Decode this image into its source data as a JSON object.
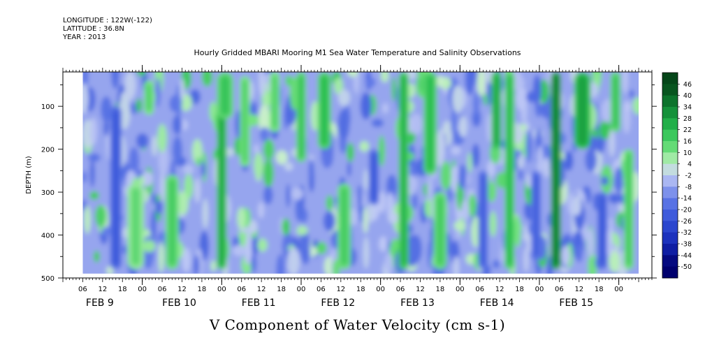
{
  "header": {
    "longitude": "LONGITUDE : 122W(-122)",
    "latitude": "LATITUDE : 36.8N",
    "year": "YEAR : 2013"
  },
  "title": "Hourly Gridded MBARI Mooring M1 Sea Water Temperature and Salinity Observations",
  "chart_data": {
    "type": "heatmap",
    "title": "Hourly Gridded MBARI Mooring M1 Sea Water Temperature and Salinity Observations",
    "variable_label": "V Component of Water Velocity (cm s-1)",
    "ylabel": "DEPTH (m)",
    "ylim": [
      500,
      20
    ],
    "y_inverted": true,
    "yticks": [
      {
        "value": 100,
        "label": "100"
      },
      {
        "value": 200,
        "label": "200"
      },
      {
        "value": 300,
        "label": "300"
      },
      {
        "value": 400,
        "label": "400"
      },
      {
        "value": 500,
        "label": "500"
      }
    ],
    "x_hour_labels": [
      "06",
      "12",
      "18",
      "00",
      "06",
      "12",
      "18",
      "00",
      "06",
      "12",
      "18",
      "00",
      "06",
      "12",
      "18",
      "00",
      "06",
      "12",
      "18",
      "00",
      "06",
      "12",
      "18",
      "00",
      "06",
      "12",
      "18",
      "00"
    ],
    "x_day_labels": [
      "FEB  9",
      "FEB 10",
      "FEB 11",
      "FEB 12",
      "FEB 13",
      "FEB 14",
      "FEB 15"
    ],
    "data_time_range_hours": [
      6,
      174
    ],
    "data_depth_range_m": [
      20,
      490
    ],
    "colorbar": {
      "levels": [
        -50,
        -44,
        -38,
        -32,
        -26,
        -20,
        -14,
        -8,
        -2,
        4,
        10,
        16,
        22,
        28,
        34,
        40,
        46
      ],
      "labels": [
        "46",
        "40",
        "34",
        "28",
        "22",
        "16",
        "10",
        "4",
        "-2",
        "-8",
        "-14",
        "-20",
        "-26",
        "-32",
        "-38",
        "-44",
        "-50"
      ],
      "colors": {
        "negative_strong": "#000080",
        "negative_mid": "#3355dd",
        "negative_weak": "#a0b0ee",
        "near_zero": "#c8f0c8",
        "positive_weak": "#6ee87a",
        "positive_mid": "#22b848",
        "positive_strong": "#0a5a22"
      }
    },
    "bands": [
      {
        "hour": 16,
        "width_h": 3.5,
        "v": -18,
        "z0": 100,
        "z1": 480
      },
      {
        "hour": 22,
        "width_h": 5,
        "v": 8,
        "z0": 280,
        "z1": 480
      },
      {
        "hour": 26,
        "width_h": 3,
        "v": 10,
        "z0": 40,
        "z1": 120
      },
      {
        "hour": 33,
        "width_h": 4,
        "v": 12,
        "z0": 260,
        "z1": 480
      },
      {
        "hour": 48,
        "width_h": 3,
        "v": 20,
        "z0": 100,
        "z1": 480
      },
      {
        "hour": 49,
        "width_h": 5,
        "v": 14,
        "z0": 20,
        "z1": 130
      },
      {
        "hour": 55,
        "width_h": 3,
        "v": 10,
        "z0": 30,
        "z1": 240
      },
      {
        "hour": 64,
        "width_h": 3,
        "v": 10,
        "z0": 20,
        "z1": 160
      },
      {
        "hour": 72,
        "width_h": 3,
        "v": 14,
        "z0": 20,
        "z1": 230
      },
      {
        "hour": 79,
        "width_h": 4,
        "v": 16,
        "z0": 20,
        "z1": 200
      },
      {
        "hour": 85,
        "width_h": 4,
        "v": 12,
        "z0": 280,
        "z1": 480
      },
      {
        "hour": 94,
        "width_h": 3,
        "v": -18,
        "z0": 200,
        "z1": 330
      },
      {
        "hour": 103,
        "width_h": 3,
        "v": 18,
        "z0": 20,
        "z1": 480
      },
      {
        "hour": 111,
        "width_h": 4,
        "v": 16,
        "z0": 20,
        "z1": 260
      },
      {
        "hour": 114,
        "width_h": 4,
        "v": 12,
        "z0": 300,
        "z1": 480
      },
      {
        "hour": 127,
        "width_h": 3,
        "v": -16,
        "z0": 250,
        "z1": 480
      },
      {
        "hour": 131,
        "width_h": 3,
        "v": 20,
        "z0": 20,
        "z1": 200
      },
      {
        "hour": 135,
        "width_h": 3,
        "v": 16,
        "z0": 20,
        "z1": 480
      },
      {
        "hour": 143,
        "width_h": 3,
        "v": -16,
        "z0": 250,
        "z1": 460
      },
      {
        "hour": 149,
        "width_h": 3,
        "v": 28,
        "z0": 20,
        "z1": 480
      },
      {
        "hour": 157,
        "width_h": 5,
        "v": 22,
        "z0": 20,
        "z1": 200
      },
      {
        "hour": 163,
        "width_h": 3,
        "v": -18,
        "z0": 300,
        "z1": 480
      },
      {
        "hour": 167,
        "width_h": 3,
        "v": 14,
        "z0": 20,
        "z1": 160
      },
      {
        "hour": 171,
        "width_h": 3,
        "v": 12,
        "z0": 200,
        "z1": 480
      }
    ]
  }
}
